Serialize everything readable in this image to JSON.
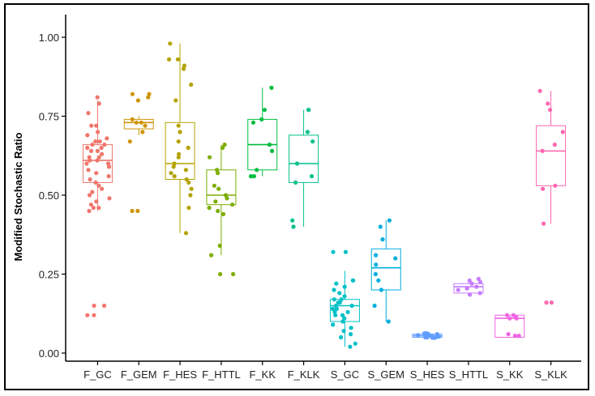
{
  "chart_data": {
    "type": "box",
    "title": "",
    "xlabel": "",
    "ylabel": "Modified Stochastic Ratio",
    "ylim": [
      -0.02,
      1.02
    ],
    "yticks": [
      0.0,
      0.25,
      0.5,
      0.75,
      1.0
    ],
    "ytick_labels": [
      "0.00",
      "0.25",
      "0.50",
      "0.75",
      "1.00"
    ],
    "grid": false,
    "legend": "none",
    "categories": [
      "F_GC",
      "F_GEM",
      "F_HES",
      "F_HTTL",
      "F_KK",
      "F_KLK",
      "S_GC",
      "S_GEM",
      "S_HES",
      "S_HTTL",
      "S_KK",
      "S_KLK"
    ],
    "colors": [
      "#f0766d",
      "#cf9506",
      "#b4a300",
      "#7cae00",
      "#00bd3f",
      "#00c18a",
      "#00c1c6",
      "#00aedd",
      "#619cff",
      "#c67cff",
      "#f064e3",
      "#ff68b1"
    ],
    "series": [
      {
        "name": "F_GC",
        "q1": 0.54,
        "median": 0.61,
        "q3": 0.66,
        "whisker_low": 0.45,
        "whisker_high": 0.8,
        "points": [
          0.81,
          0.79,
          0.76,
          0.72,
          0.72,
          0.7,
          0.69,
          0.68,
          0.67,
          0.67,
          0.66,
          0.66,
          0.65,
          0.65,
          0.64,
          0.64,
          0.63,
          0.62,
          0.62,
          0.61,
          0.61,
          0.6,
          0.6,
          0.59,
          0.58,
          0.57,
          0.56,
          0.55,
          0.54,
          0.53,
          0.52,
          0.51,
          0.5,
          0.49,
          0.48,
          0.47,
          0.46,
          0.46,
          0.45,
          0.15,
          0.15,
          0.12,
          0.12
        ]
      },
      {
        "name": "F_GEM",
        "q1": 0.71,
        "median": 0.73,
        "q3": 0.74,
        "whisker_low": 0.69,
        "whisker_high": 0.75,
        "points": [
          0.82,
          0.82,
          0.81,
          0.8,
          0.74,
          0.73,
          0.73,
          0.72,
          0.7,
          0.67,
          0.45,
          0.45
        ]
      },
      {
        "name": "F_HES",
        "q1": 0.55,
        "median": 0.6,
        "q3": 0.73,
        "whisker_low": 0.38,
        "whisker_high": 0.98,
        "points": [
          0.98,
          0.93,
          0.93,
          0.91,
          0.9,
          0.85,
          0.8,
          0.72,
          0.7,
          0.67,
          0.65,
          0.63,
          0.62,
          0.6,
          0.59,
          0.58,
          0.57,
          0.56,
          0.55,
          0.54,
          0.52,
          0.5,
          0.46,
          0.38
        ]
      },
      {
        "name": "F_HTTL",
        "q1": 0.47,
        "median": 0.5,
        "q3": 0.58,
        "whisker_low": 0.31,
        "whisker_high": 0.66,
        "points": [
          0.66,
          0.65,
          0.62,
          0.58,
          0.57,
          0.53,
          0.52,
          0.5,
          0.49,
          0.48,
          0.47,
          0.46,
          0.45,
          0.44,
          0.34,
          0.31,
          0.25,
          0.25
        ]
      },
      {
        "name": "F_KK",
        "q1": 0.58,
        "median": 0.66,
        "q3": 0.74,
        "whisker_low": 0.56,
        "whisker_high": 0.84,
        "points": [
          0.84,
          0.77,
          0.74,
          0.73,
          0.66,
          0.64,
          0.58,
          0.56,
          0.56
        ]
      },
      {
        "name": "F_KLK",
        "q1": 0.54,
        "median": 0.6,
        "q3": 0.69,
        "whisker_low": 0.4,
        "whisker_high": 0.77,
        "points": [
          0.77,
          0.77,
          0.7,
          0.67,
          0.6,
          0.56,
          0.54,
          0.42,
          0.4
        ]
      },
      {
        "name": "S_GC",
        "q1": 0.1,
        "median": 0.15,
        "q3": 0.17,
        "whisker_low": 0.02,
        "whisker_high": 0.26,
        "points": [
          0.32,
          0.32,
          0.23,
          0.23,
          0.22,
          0.21,
          0.2,
          0.19,
          0.18,
          0.17,
          0.17,
          0.16,
          0.16,
          0.15,
          0.15,
          0.14,
          0.14,
          0.13,
          0.13,
          0.12,
          0.12,
          0.11,
          0.1,
          0.09,
          0.08,
          0.07,
          0.06,
          0.05,
          0.03,
          0.02
        ]
      },
      {
        "name": "S_GEM",
        "q1": 0.2,
        "median": 0.27,
        "q3": 0.33,
        "whisker_low": 0.1,
        "whisker_high": 0.42,
        "points": [
          0.42,
          0.4,
          0.36,
          0.31,
          0.3,
          0.28,
          0.25,
          0.23,
          0.2,
          0.15,
          0.1
        ]
      },
      {
        "name": "S_HES",
        "q1": 0.05,
        "median": 0.055,
        "q3": 0.06,
        "whisker_low": 0.045,
        "whisker_high": 0.065,
        "points": [
          0.063,
          0.062,
          0.061,
          0.06,
          0.059,
          0.058,
          0.057,
          0.056,
          0.055,
          0.055,
          0.054,
          0.054,
          0.053,
          0.052,
          0.051,
          0.05,
          0.05,
          0.049,
          0.048
        ]
      },
      {
        "name": "S_HTTL",
        "q1": 0.19,
        "median": 0.21,
        "q3": 0.22,
        "whisker_low": 0.18,
        "whisker_high": 0.23,
        "points": [
          0.235,
          0.23,
          0.225,
          0.22,
          0.21,
          0.205,
          0.2,
          0.19,
          0.185
        ]
      },
      {
        "name": "S_KK",
        "q1": 0.05,
        "median": 0.11,
        "q3": 0.12,
        "whisker_low": 0.05,
        "whisker_high": 0.12,
        "points": [
          0.12,
          0.12,
          0.115,
          0.11,
          0.11,
          0.06,
          0.055,
          0.055
        ]
      },
      {
        "name": "S_KLK",
        "q1": 0.53,
        "median": 0.64,
        "q3": 0.72,
        "whisker_low": 0.41,
        "whisker_high": 0.83,
        "points": [
          0.83,
          0.79,
          0.77,
          0.7,
          0.66,
          0.64,
          0.53,
          0.52,
          0.41,
          0.16,
          0.16
        ]
      }
    ]
  }
}
